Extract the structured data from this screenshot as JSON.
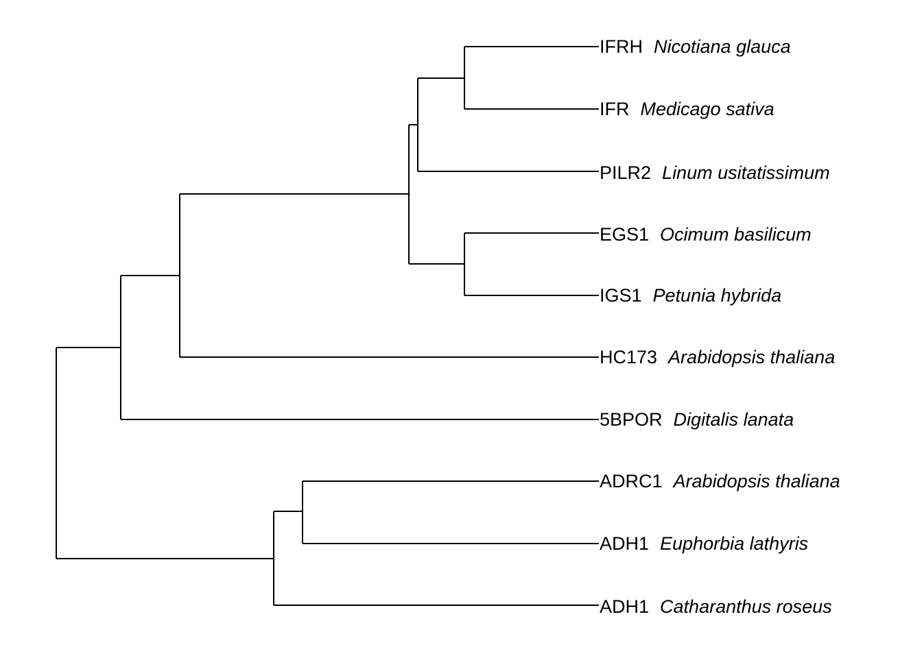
{
  "tree": {
    "taxa": [
      {
        "gene": "IFRH",
        "species": "Nicotiana glauca"
      },
      {
        "gene": "IFR",
        "species": "Medicago sativa"
      },
      {
        "gene": "PILR2",
        "species": "Linum usitatissimum"
      },
      {
        "gene": "EGS1",
        "species": "Ocimum basilicum"
      },
      {
        "gene": "IGS1",
        "species": "Petunia hybrida"
      },
      {
        "gene": "HC173",
        "species": "Arabidopsis thaliana"
      },
      {
        "gene": "5BPOR",
        "species": "Digitalis lanata"
      },
      {
        "gene": "ADRC1",
        "species": "Arabidopsis thaliana"
      },
      {
        "gene": "ADH1",
        "species": "Euphorbia lathyris"
      },
      {
        "gene": "ADH1",
        "species": "Catharanthus roseus"
      }
    ]
  }
}
